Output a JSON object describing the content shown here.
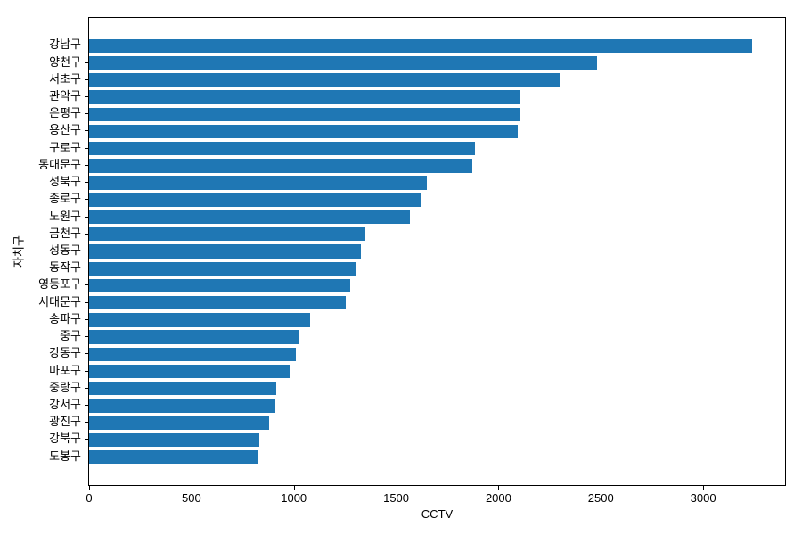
{
  "chart_data": {
    "type": "bar",
    "orientation": "horizontal",
    "title": "",
    "xlabel": "CCTV",
    "ylabel": "자치구",
    "categories": [
      "강남구",
      "양천구",
      "서초구",
      "관악구",
      "은평구",
      "용산구",
      "구로구",
      "동대문구",
      "성북구",
      "종로구",
      "노원구",
      "금천구",
      "성동구",
      "동작구",
      "영등포구",
      "서대문구",
      "송파구",
      "중구",
      "강동구",
      "마포구",
      "중랑구",
      "강서구",
      "광진구",
      "강북구",
      "도봉구"
    ],
    "values": [
      3238,
      2482,
      2297,
      2109,
      2108,
      2096,
      1884,
      1870,
      1651,
      1619,
      1566,
      1348,
      1327,
      1302,
      1277,
      1254,
      1081,
      1023,
      1010,
      980,
      916,
      911,
      878,
      831,
      825
    ],
    "xlim": [
      0,
      3400
    ],
    "xticks": [
      0,
      500,
      1000,
      1500,
      2000,
      2500,
      3000
    ],
    "bar_color": "#1f77b4",
    "axis_color": "#000000",
    "background_color": "#ffffff",
    "grid": false,
    "legend": null
  }
}
